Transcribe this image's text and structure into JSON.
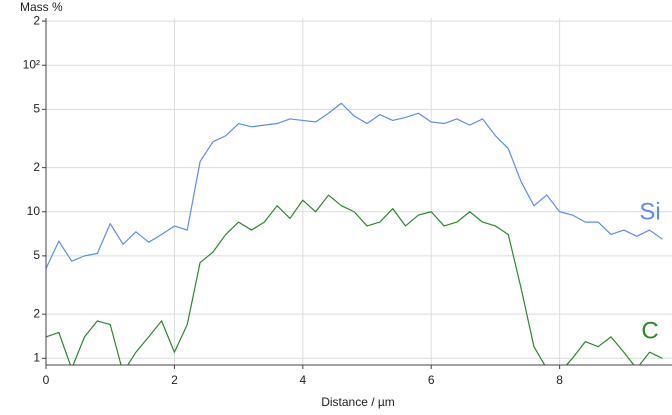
{
  "chart_data": {
    "type": "line",
    "y_label": "Mass %",
    "x_label": "Distance / µm",
    "log_y": true,
    "grid": true,
    "x": [
      0,
      0.2,
      0.4,
      0.6,
      0.8,
      1.0,
      1.2,
      1.4,
      1.6,
      1.8,
      2.0,
      2.2,
      2.4,
      2.6,
      2.8,
      3.0,
      3.2,
      3.4,
      3.6,
      3.8,
      4.0,
      4.2,
      4.4,
      4.6,
      4.8,
      5.0,
      5.2,
      5.4,
      5.6,
      5.8,
      6.0,
      6.2,
      6.4,
      6.6,
      6.8,
      7.0,
      7.2,
      7.4,
      7.6,
      7.8,
      8.0,
      8.2,
      8.4,
      8.6,
      8.8,
      9.0,
      9.2,
      9.4,
      9.6
    ],
    "series": [
      {
        "name": "Si",
        "color": "#5b8def",
        "values": [
          4.1,
          6.3,
          4.6,
          5.0,
          5.2,
          8.3,
          6.0,
          7.3,
          6.2,
          7.0,
          8.0,
          7.5,
          22,
          30,
          33,
          40,
          38,
          39,
          40,
          43,
          42,
          41,
          47,
          55,
          45,
          40,
          46,
          42,
          44,
          47,
          41,
          40,
          43,
          39,
          43,
          33,
          27,
          16,
          11,
          13,
          10,
          9.5,
          8.5,
          8.5,
          7.0,
          7.5,
          6.8,
          7.5,
          6.5
        ]
      },
      {
        "name": "C",
        "color": "#2a8a2a",
        "values": [
          1.4,
          1.5,
          0.85,
          1.4,
          1.8,
          1.7,
          0.8,
          1.1,
          1.4,
          1.8,
          1.1,
          1.7,
          4.5,
          5.3,
          7,
          8.5,
          7.5,
          8.5,
          11,
          9,
          12,
          10,
          13,
          11,
          10,
          8,
          8.5,
          10.5,
          8,
          9.5,
          10,
          8,
          8.5,
          10,
          8.5,
          8,
          7,
          3,
          1.2,
          0.85,
          0.8,
          1.0,
          1.3,
          1.2,
          1.4,
          1.1,
          0.85,
          1.1,
          1.0
        ]
      }
    ],
    "xlim": [
      0,
      9.75
    ],
    "xticks": [
      0,
      2,
      4,
      6,
      8
    ],
    "ylim": [
      0.9,
      210
    ],
    "yticks": [
      1,
      2,
      5,
      10,
      {
        "value": 20,
        "label": "2"
      },
      {
        "value": 50,
        "label": "5"
      },
      {
        "value": 100,
        "label": "10²"
      },
      {
        "value": 200,
        "label": "2"
      }
    ]
  }
}
